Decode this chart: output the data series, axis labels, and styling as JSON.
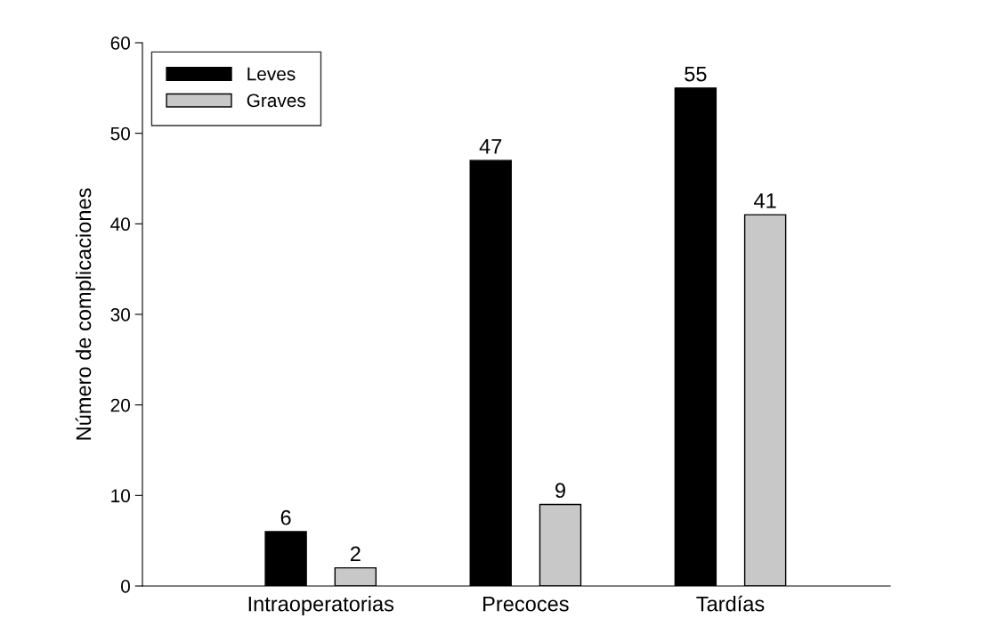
{
  "chart_data": {
    "type": "bar",
    "ylabel": "Número de complicaciones",
    "categories": [
      "Intraoperatorias",
      "Precoces",
      "Tardías"
    ],
    "series": [
      {
        "name": "Leves",
        "color": "#000000",
        "values": [
          6,
          47,
          55
        ]
      },
      {
        "name": "Graves",
        "color": "#c8c8c8",
        "values": [
          2,
          9,
          41
        ]
      }
    ],
    "ylim": [
      0,
      60
    ],
    "yticks": [
      0,
      10,
      20,
      30,
      40,
      50,
      60
    ],
    "grid": false,
    "legend": "top left",
    "data_labels": true
  }
}
